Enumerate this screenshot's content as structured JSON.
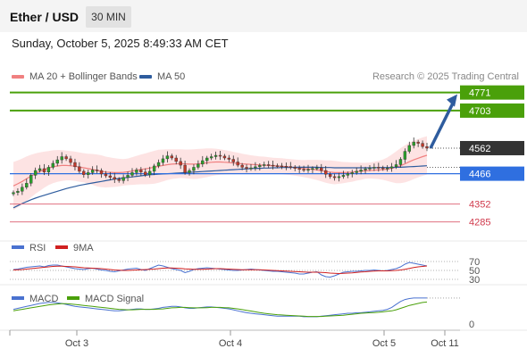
{
  "header": {
    "title": "Ether / USD",
    "timeframe": "30 MIN"
  },
  "datetime": "Sunday, October 5, 2025 8:49:33 AM CET",
  "credit": "Research © 2025 Trading Central",
  "legend": {
    "ma20": {
      "label": "MA 20 + Bollinger Bands",
      "color": "#f08080"
    },
    "ma50": {
      "label": "MA 50",
      "color": "#2e5c9e"
    }
  },
  "chart_data": {
    "type": "candlestick",
    "price_axis": {
      "min": 4240,
      "max": 4800
    },
    "levels": [
      {
        "value": 4771,
        "label": "4771",
        "style": "resistance",
        "color": "#4aa00a"
      },
      {
        "value": 4703,
        "label": "4703",
        "style": "resistance",
        "color": "#4aa00a"
      },
      {
        "value": 4562,
        "label": "4562",
        "style": "last",
        "color": "#333333"
      },
      {
        "value": 4466,
        "label": "4466",
        "style": "pivot",
        "color": "#2f6fe0"
      },
      {
        "value": 4352,
        "label": "4352",
        "style": "support",
        "color": "#e07080"
      },
      {
        "value": 4285,
        "label": "4285",
        "style": "support",
        "color": "#e07080"
      }
    ],
    "closes": [
      4395,
      4400,
      4415,
      4430,
      4460,
      4478,
      4485,
      4472,
      4490,
      4505,
      4518,
      4530,
      4522,
      4508,
      4492,
      4475,
      4462,
      4470,
      4480,
      4478,
      4465,
      4458,
      4452,
      4445,
      4440,
      4452,
      4460,
      4470,
      4480,
      4472,
      4462,
      4475,
      4495,
      4508,
      4522,
      4533,
      4525,
      4512,
      4498,
      4470,
      4478,
      4490,
      4502,
      4515,
      4525,
      4530,
      4535,
      4532,
      4525,
      4520,
      4510,
      4498,
      4490,
      4485,
      4488,
      4492,
      4497,
      4500,
      4498,
      4496,
      4495,
      4494,
      4493,
      4490,
      4486,
      4482,
      4480,
      4482,
      4486,
      4488,
      4478,
      4464,
      4455,
      4451,
      4455,
      4460,
      4466,
      4470,
      4475,
      4480,
      4484,
      4487,
      4490,
      4488,
      4485,
      4487,
      4492,
      4500,
      4520,
      4550,
      4572,
      4585,
      4580,
      4568,
      4562
    ],
    "ma20": [
      4420,
      4428,
      4437,
      4447,
      4457,
      4466,
      4474,
      4481,
      4487,
      4492,
      4495,
      4497,
      4497,
      4496,
      4494,
      4491,
      4488,
      4485,
      4482,
      4478,
      4475,
      4472,
      4471,
      4470,
      4470,
      4471,
      4473,
      4476,
      4479,
      4482,
      4484,
      4487,
      4490,
      4494,
      4497,
      4500,
      4502,
      4503,
      4504,
      4503,
      4502,
      4502,
      4503,
      4505,
      4507,
      4509,
      4510,
      4510,
      4509,
      4508,
      4506,
      4505,
      4503,
      4502,
      4501,
      4500,
      4499,
      4498,
      4497,
      4496,
      4495,
      4494,
      4492,
      4491,
      4489,
      4487,
      4485,
      4484,
      4482,
      4480,
      4477,
      4474,
      4472,
      4470,
      4470,
      4470,
      4471,
      4472,
      4474,
      4475,
      4477,
      4478,
      4479,
      4480,
      4481,
      4483,
      4486,
      4490,
      4496,
      4503,
      4511,
      4518,
      4524,
      4530,
      4535
    ],
    "ma50": [
      4338,
      4346,
      4354,
      4361,
      4368,
      4374,
      4380,
      4385,
      4390,
      4395,
      4400,
      4405,
      4410,
      4414,
      4418,
      4422,
      4425,
      4428,
      4431,
      4434,
      4437,
      4440,
      4443,
      4446,
      4448,
      4450,
      4452,
      4454,
      4456,
      4458,
      4460,
      4462,
      4463,
      4464,
      4465,
      4466,
      4467,
      4468,
      4469,
      4470,
      4471,
      4472,
      4473,
      4474,
      4475,
      4476,
      4477,
      4478,
      4479,
      4480,
      4481,
      4482,
      4483,
      4484,
      4485,
      4486,
      4486,
      4487,
      4487,
      4488,
      4488,
      4489,
      4489,
      4489,
      4490,
      4490,
      4490,
      4490,
      4490,
      4490,
      4489,
      4489,
      4489,
      4488,
      4488,
      4488,
      4488,
      4488,
      4488,
      4488,
      4488,
      4488,
      4488,
      4489,
      4489,
      4489,
      4489,
      4490,
      4490,
      4491,
      4492,
      4493,
      4494,
      4495,
      4496
    ],
    "bb_width": [
      90,
      88,
      86,
      84,
      80,
      76,
      72,
      68,
      64,
      62,
      60,
      58,
      56,
      55,
      55,
      55,
      55,
      56,
      58,
      60,
      60,
      58,
      56,
      54,
      52,
      50,
      50,
      52,
      54,
      56,
      58,
      60,
      62,
      62,
      60,
      58,
      56,
      55,
      54,
      54,
      55,
      56,
      56,
      55,
      54,
      52,
      50,
      48,
      46,
      44,
      42,
      40,
      38,
      36,
      34,
      33,
      32,
      32,
      31,
      30,
      30,
      30,
      30,
      30,
      30,
      31,
      32,
      34,
      36,
      38,
      40,
      42,
      44,
      44,
      42,
      40,
      38,
      36,
      34,
      32,
      30,
      30,
      32,
      34,
      38,
      44,
      52,
      60,
      66,
      70,
      72,
      72,
      72,
      72,
      72
    ],
    "forecast_arrow": {
      "from": 4562,
      "to": 4771
    },
    "x_ticks": [
      "Oct 3",
      "Oct 4",
      "Oct 5",
      "Oct 11"
    ],
    "rsi": {
      "label": "RSI",
      "signal_label": "9MA",
      "levels": [
        70,
        50,
        30
      ],
      "values": [
        52,
        53,
        55,
        57,
        58,
        59,
        60,
        58,
        61,
        62,
        62,
        60,
        58,
        56,
        54,
        53,
        52,
        54,
        55,
        53,
        51,
        50,
        48,
        47,
        49,
        51,
        53,
        54,
        55,
        52,
        50,
        54,
        58,
        62,
        60,
        57,
        54,
        52,
        50,
        45,
        48,
        52,
        54,
        55,
        56,
        55,
        54,
        53,
        52,
        51,
        50,
        50,
        51,
        52,
        53,
        52,
        51,
        50,
        49,
        48,
        48,
        47,
        46,
        45,
        44,
        42,
        42,
        44,
        46,
        47,
        40,
        36,
        35,
        38,
        42,
        46,
        47,
        48,
        48,
        49,
        50,
        50,
        51,
        50,
        49,
        50,
        52,
        54,
        58,
        64,
        68,
        66,
        64,
        62,
        60
      ],
      "signal": [
        51,
        51.5,
        52,
        53,
        54,
        55,
        56,
        57,
        58,
        59,
        59.5,
        59.5,
        59,
        58.5,
        58,
        57,
        56,
        55.5,
        55,
        54.5,
        54,
        53,
        52,
        51,
        50.5,
        50,
        50,
        50.5,
        51,
        51.5,
        52,
        52.5,
        53,
        54,
        55,
        55.5,
        55.5,
        55,
        54.5,
        53.5,
        53,
        52.5,
        52.5,
        52.5,
        53,
        53.5,
        54,
        54,
        53.5,
        53,
        52.5,
        52,
        51.5,
        51.5,
        51.5,
        51.5,
        51.5,
        51,
        50.5,
        50,
        49.5,
        49,
        48.5,
        48,
        47.5,
        47,
        46.5,
        46,
        46,
        46,
        45.5,
        45,
        44,
        43.5,
        43,
        43.5,
        44,
        44.5,
        45.5,
        46.5,
        47,
        48,
        48.5,
        49,
        49,
        49,
        49.5,
        50,
        51,
        52.5,
        54.5,
        56.5,
        58,
        59,
        60
      ]
    },
    "macd": {
      "label": "MACD",
      "signal_label": "MACD Signal",
      "zero_label": "0",
      "values": [
        8,
        10,
        12,
        14,
        16,
        18,
        20,
        21,
        22,
        22,
        21,
        20,
        18,
        16,
        14,
        13,
        12,
        11,
        10,
        9,
        8,
        7,
        6,
        5,
        5,
        6,
        7,
        8,
        9,
        9,
        8,
        8,
        9,
        10,
        12,
        13,
        14,
        14,
        13,
        11,
        10,
        10,
        11,
        12,
        13,
        13,
        12,
        11,
        10,
        9,
        7,
        5,
        3,
        1,
        0,
        -1,
        -2,
        -3,
        -4,
        -5,
        -6,
        -6,
        -6,
        -6,
        -6,
        -6,
        -7,
        -7,
        -7,
        -7,
        -6,
        -5,
        -4,
        -3,
        -2,
        -1,
        0,
        0,
        1,
        1,
        2,
        3,
        4,
        5,
        6,
        8,
        12,
        18,
        24,
        28,
        30,
        31,
        31,
        31,
        31
      ],
      "signal": [
        5,
        6.5,
        8,
        9.5,
        11,
        12.5,
        14,
        15.5,
        17,
        18,
        19,
        19.5,
        19.5,
        19,
        18,
        17,
        16,
        15,
        14,
        13,
        12,
        11,
        10,
        9,
        8,
        7.5,
        7,
        7,
        7.5,
        8,
        8,
        8,
        8,
        8.5,
        9,
        10,
        11,
        11.5,
        12,
        12,
        11.5,
        11,
        11,
        11,
        11.5,
        12,
        12,
        12,
        11.5,
        11,
        10,
        9,
        7.5,
        6,
        4.5,
        3,
        1.5,
        0,
        -1,
        -2,
        -3,
        -3.5,
        -4,
        -4.5,
        -5,
        -5.5,
        -6,
        -6.5,
        -6.5,
        -6.5,
        -6.5,
        -6,
        -5.5,
        -5,
        -4.5,
        -4,
        -3,
        -2,
        -1,
        0,
        0.5,
        1,
        1.5,
        2,
        3,
        4,
        5,
        7,
        10,
        13,
        16,
        18,
        20,
        22,
        23
      ]
    },
    "colors": {
      "up": "#2aa02a",
      "down": "#c0392b",
      "rsi": "#4a72d0",
      "rsi_ma": "#d02020",
      "macd": "#4a72d0",
      "macd_signal": "#4aa00a",
      "band_fill": "#fde0e0"
    }
  }
}
